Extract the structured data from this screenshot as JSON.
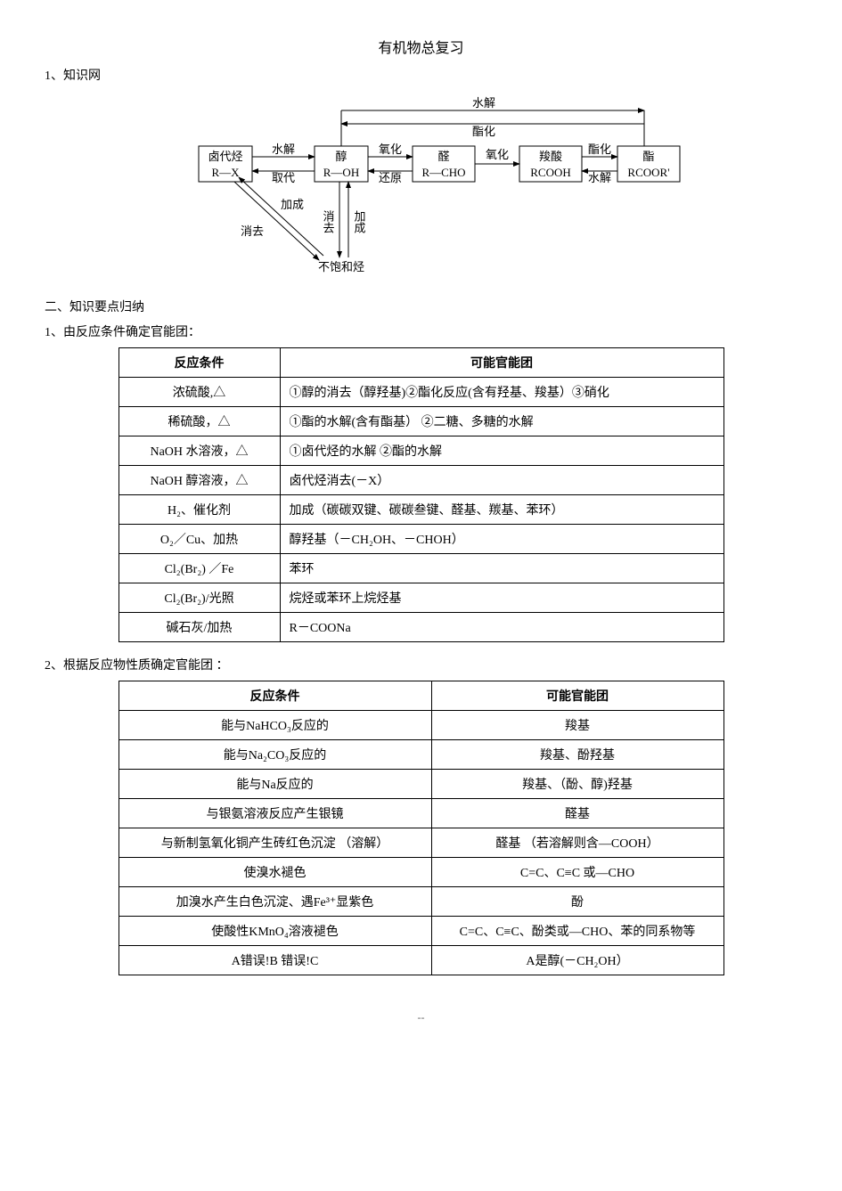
{
  "title": "有机物总复习",
  "section1": "1、知识网",
  "section2": "二、知识要点归纳",
  "section2_1": "1、由反应条件确定官能团：",
  "section2_2": "2、根据反应物性质确定官能团 ：",
  "diagram": {
    "nodes": {
      "halide": {
        "label1": "卤代烃",
        "label2": "R—X"
      },
      "alcohol": {
        "label1": "醇",
        "label2": "R—OH"
      },
      "aldehyde": {
        "label1": "醛",
        "label2": "R—CHO"
      },
      "acid": {
        "label1": "羧酸",
        "label2": "RCOOH"
      },
      "ester": {
        "label1": "酯",
        "label2": "RCOOR'"
      },
      "unsat": "不饱和烃"
    },
    "edges": {
      "halide_alcohol_top": "水解",
      "halide_alcohol_bot": "取代",
      "alcohol_aldehyde_top": "氧化",
      "alcohol_aldehyde_bot": "还原",
      "aldehyde_acid": "氧化",
      "acid_ester_top": "酯化",
      "acid_ester_bot": "水解",
      "alcohol_ester_top1": "水解",
      "alcohol_ester_top2": "酯化",
      "halide_unsat_l": "加成",
      "halide_unsat_r": "消去",
      "alcohol_unsat_l": "消去",
      "alcohol_unsat_r": "加成"
    }
  },
  "table1": {
    "headers": [
      "反应条件",
      "可能官能团"
    ],
    "rows": [
      [
        "浓硫酸,△",
        "①醇的消去（醇羟基)②酯化反应(含有羟基、羧基）③硝化"
      ],
      [
        "稀硫酸，△",
        "①酯的水解(含有酯基） ②二糖、多糖的水解"
      ],
      [
        "NaOH 水溶液，△",
        "①卤代烃的水解  ②酯的水解"
      ],
      [
        "NaOH 醇溶液，△",
        "卤代烃消去(－X）"
      ],
      [
        "H₂、催化剂",
        "加成（碳碳双键、碳碳叁键、醛基、羰基、苯环）"
      ],
      [
        "O₂／Cu、加热",
        "醇羟基（－CH₂OH、－CHOH）"
      ],
      [
        "Cl₂(Br₂) ／Fe",
        "苯环"
      ],
      [
        "Cl₂(Br₂)/光照",
        "烷烃或苯环上烷烃基"
      ],
      [
        "碱石灰/加热",
        "R－COONa"
      ]
    ]
  },
  "table2": {
    "headers": [
      "反应条件",
      "可能官能团"
    ],
    "rows": [
      [
        "能与NaHCO₃反应的",
        "羧基"
      ],
      [
        "能与Na₂CO₃反应的",
        "羧基、酚羟基"
      ],
      [
        "能与Na反应的",
        "羧基、（酚、醇)羟基"
      ],
      [
        "与银氨溶液反应产生银镜",
        "醛基"
      ],
      [
        "与新制氢氧化铜产生砖红色沉淀 （溶解）",
        "醛基 （若溶解则含—COOH）"
      ],
      [
        "使溴水褪色",
        "C=C、C≡C 或—CHO"
      ],
      [
        "加溴水产生白色沉淀、遇Fe³⁺显紫色",
        "酚"
      ],
      [
        "使酸性KMnO₄溶液褪色",
        "C=C、C≡C、酚类或—CHO、苯的同系物等"
      ],
      [
        "A错误!B  错误!C",
        "A是醇(－CH₂OH）"
      ]
    ]
  },
  "footer": "--"
}
